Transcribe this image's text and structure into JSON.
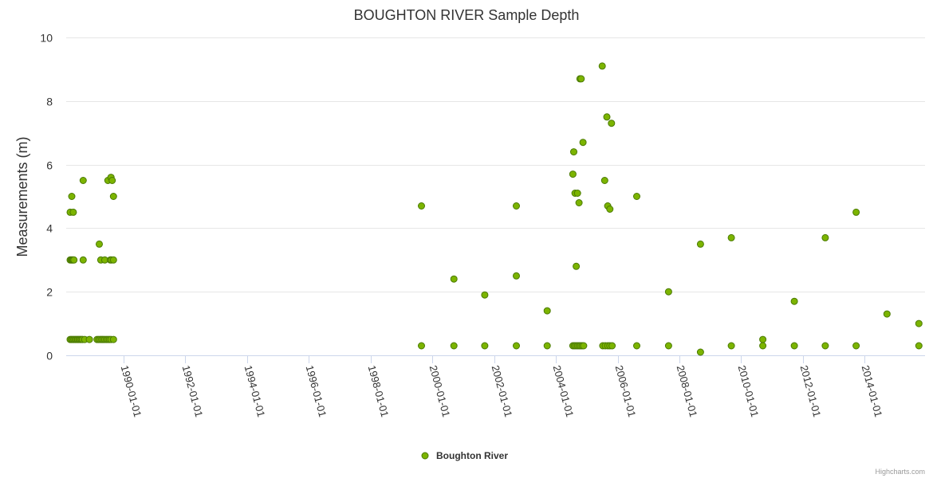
{
  "chart_data": {
    "type": "scatter",
    "title": "BOUGHTON RIVER Sample Depth",
    "ylabel": "Measurements (m)",
    "xlabel": "",
    "ylim": [
      0,
      10
    ],
    "yticks": [
      0,
      2,
      4,
      6,
      8,
      10
    ],
    "xlim": [
      1988.15,
      2015.95
    ],
    "xtick_labels": [
      "1990-01-01",
      "1992-01-01",
      "1994-01-01",
      "1996-01-01",
      "1998-01-01",
      "2000-01-01",
      "2002-01-01",
      "2004-01-01",
      "2006-01-01",
      "2008-01-01",
      "2010-01-01",
      "2012-01-01",
      "2014-01-01"
    ],
    "xtick_values": [
      1990,
      1992,
      1994,
      1996,
      1998,
      2000,
      2002,
      2004,
      2006,
      2008,
      2010,
      2012,
      2014
    ],
    "grid": true,
    "legend_position": "bottom-center",
    "color": "#7cb400",
    "marker_stroke": "#4a7a00",
    "series": [
      {
        "name": "Boughton River",
        "points": [
          [
            1988.28,
            4.5
          ],
          [
            1988.38,
            4.5
          ],
          [
            1988.33,
            5.0
          ],
          [
            1988.7,
            5.5
          ],
          [
            1988.28,
            3.0
          ],
          [
            1988.31,
            3.0
          ],
          [
            1988.34,
            3.0
          ],
          [
            1988.37,
            3.0
          ],
          [
            1988.4,
            3.0
          ],
          [
            1988.7,
            3.0
          ],
          [
            1988.28,
            0.5
          ],
          [
            1988.32,
            0.5
          ],
          [
            1988.36,
            0.5
          ],
          [
            1988.4,
            0.5
          ],
          [
            1988.44,
            0.5
          ],
          [
            1988.48,
            0.5
          ],
          [
            1988.52,
            0.5
          ],
          [
            1988.56,
            0.5
          ],
          [
            1988.6,
            0.5
          ],
          [
            1988.64,
            0.5
          ],
          [
            1988.68,
            0.5
          ],
          [
            1988.75,
            0.5
          ],
          [
            1988.9,
            0.5
          ],
          [
            1989.22,
            3.5
          ],
          [
            1989.27,
            3.0
          ],
          [
            1989.4,
            3.0
          ],
          [
            1989.58,
            3.0
          ],
          [
            1989.62,
            3.0
          ],
          [
            1989.68,
            3.0
          ],
          [
            1989.5,
            5.5
          ],
          [
            1989.6,
            5.6
          ],
          [
            1989.64,
            5.5
          ],
          [
            1989.68,
            5.0
          ],
          [
            1989.15,
            0.5
          ],
          [
            1989.2,
            0.5
          ],
          [
            1989.25,
            0.5
          ],
          [
            1989.3,
            0.5
          ],
          [
            1989.35,
            0.5
          ],
          [
            1989.4,
            0.5
          ],
          [
            1989.45,
            0.5
          ],
          [
            1989.5,
            0.5
          ],
          [
            1989.55,
            0.5
          ],
          [
            1989.6,
            0.5
          ],
          [
            1989.68,
            0.5
          ],
          [
            1999.65,
            4.7
          ],
          [
            1999.65,
            0.3
          ],
          [
            2000.7,
            2.4
          ],
          [
            2000.7,
            0.3
          ],
          [
            2001.7,
            1.9
          ],
          [
            2001.7,
            0.3
          ],
          [
            2002.72,
            4.7
          ],
          [
            2002.72,
            2.5
          ],
          [
            2002.72,
            0.3
          ],
          [
            2003.72,
            1.4
          ],
          [
            2003.72,
            0.3
          ],
          [
            2004.55,
            5.7
          ],
          [
            2004.58,
            6.4
          ],
          [
            2004.62,
            5.1
          ],
          [
            2004.66,
            2.8
          ],
          [
            2004.7,
            5.1
          ],
          [
            2004.75,
            4.8
          ],
          [
            2004.78,
            8.7
          ],
          [
            2004.82,
            8.7
          ],
          [
            2004.88,
            6.7
          ],
          [
            2004.55,
            0.3
          ],
          [
            2004.6,
            0.3
          ],
          [
            2004.65,
            0.3
          ],
          [
            2004.7,
            0.3
          ],
          [
            2004.75,
            0.3
          ],
          [
            2004.8,
            0.3
          ],
          [
            2004.85,
            0.3
          ],
          [
            2004.9,
            0.3
          ],
          [
            2005.5,
            9.1
          ],
          [
            2005.58,
            5.5
          ],
          [
            2005.65,
            7.5
          ],
          [
            2005.68,
            4.7
          ],
          [
            2005.75,
            4.6
          ],
          [
            2005.8,
            7.3
          ],
          [
            2005.52,
            0.3
          ],
          [
            2005.6,
            0.3
          ],
          [
            2005.68,
            0.3
          ],
          [
            2005.75,
            0.3
          ],
          [
            2005.82,
            0.3
          ],
          [
            2006.62,
            5.0
          ],
          [
            2006.62,
            0.3
          ],
          [
            2007.65,
            2.0
          ],
          [
            2007.65,
            0.3
          ],
          [
            2008.68,
            3.5
          ],
          [
            2008.68,
            0.1
          ],
          [
            2009.68,
            3.7
          ],
          [
            2009.68,
            0.3
          ],
          [
            2010.7,
            0.5
          ],
          [
            2010.7,
            0.3
          ],
          [
            2011.72,
            1.7
          ],
          [
            2011.72,
            0.3
          ],
          [
            2012.72,
            3.7
          ],
          [
            2012.72,
            0.3
          ],
          [
            2013.72,
            4.5
          ],
          [
            2013.72,
            0.3
          ],
          [
            2014.72,
            1.3
          ],
          [
            2015.75,
            1.0
          ],
          [
            2015.75,
            0.3
          ]
        ]
      }
    ]
  },
  "credits": "Highcharts.com"
}
